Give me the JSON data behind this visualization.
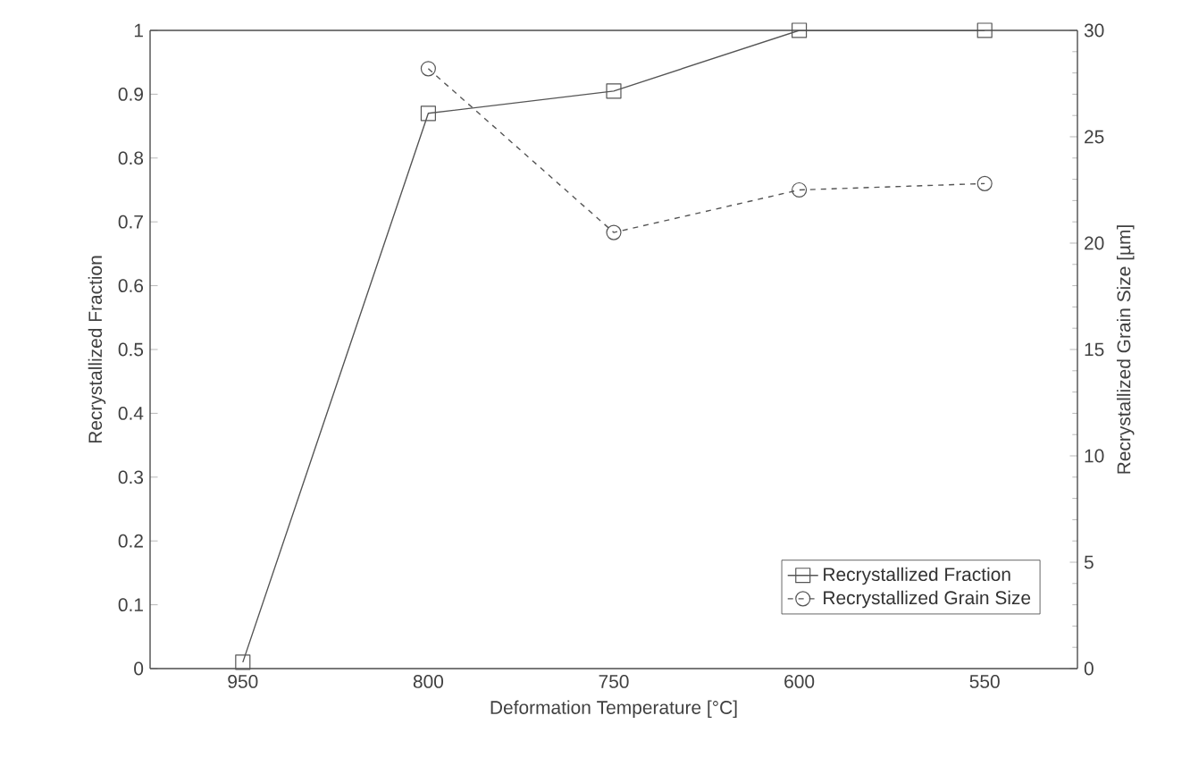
{
  "chart_data": {
    "type": "line",
    "xlabel": "Deformation Temperature [°C]",
    "ylabel": "Recrystallized Fraction",
    "y2label": "Recrystallized Grain Size [µm]",
    "categories": [
      "950",
      "800",
      "750",
      "600",
      "550"
    ],
    "series": [
      {
        "name": "Recrystallized Fraction",
        "color": "#555555",
        "marker": "square",
        "line_style": "solid",
        "values": [
          0.01,
          0.87,
          0.905,
          1.0,
          1.0
        ]
      },
      {
        "name": "Recrystallized Grain Size",
        "color": "#555555",
        "marker": "circle",
        "line_style": "dashed",
        "axis": "y2",
        "values": [
          null,
          28.2,
          20.5,
          22.5,
          22.8
        ]
      }
    ],
    "ylim": [
      0,
      1
    ],
    "yticks": [
      0,
      0.1,
      0.2,
      0.3,
      0.4,
      0.5,
      0.6,
      0.7,
      0.8,
      0.9,
      1
    ],
    "y2lim": [
      0,
      30
    ],
    "y2ticks": [
      0,
      5,
      10,
      15,
      20,
      25,
      30
    ],
    "legend": "bottom right",
    "grid": false
  }
}
